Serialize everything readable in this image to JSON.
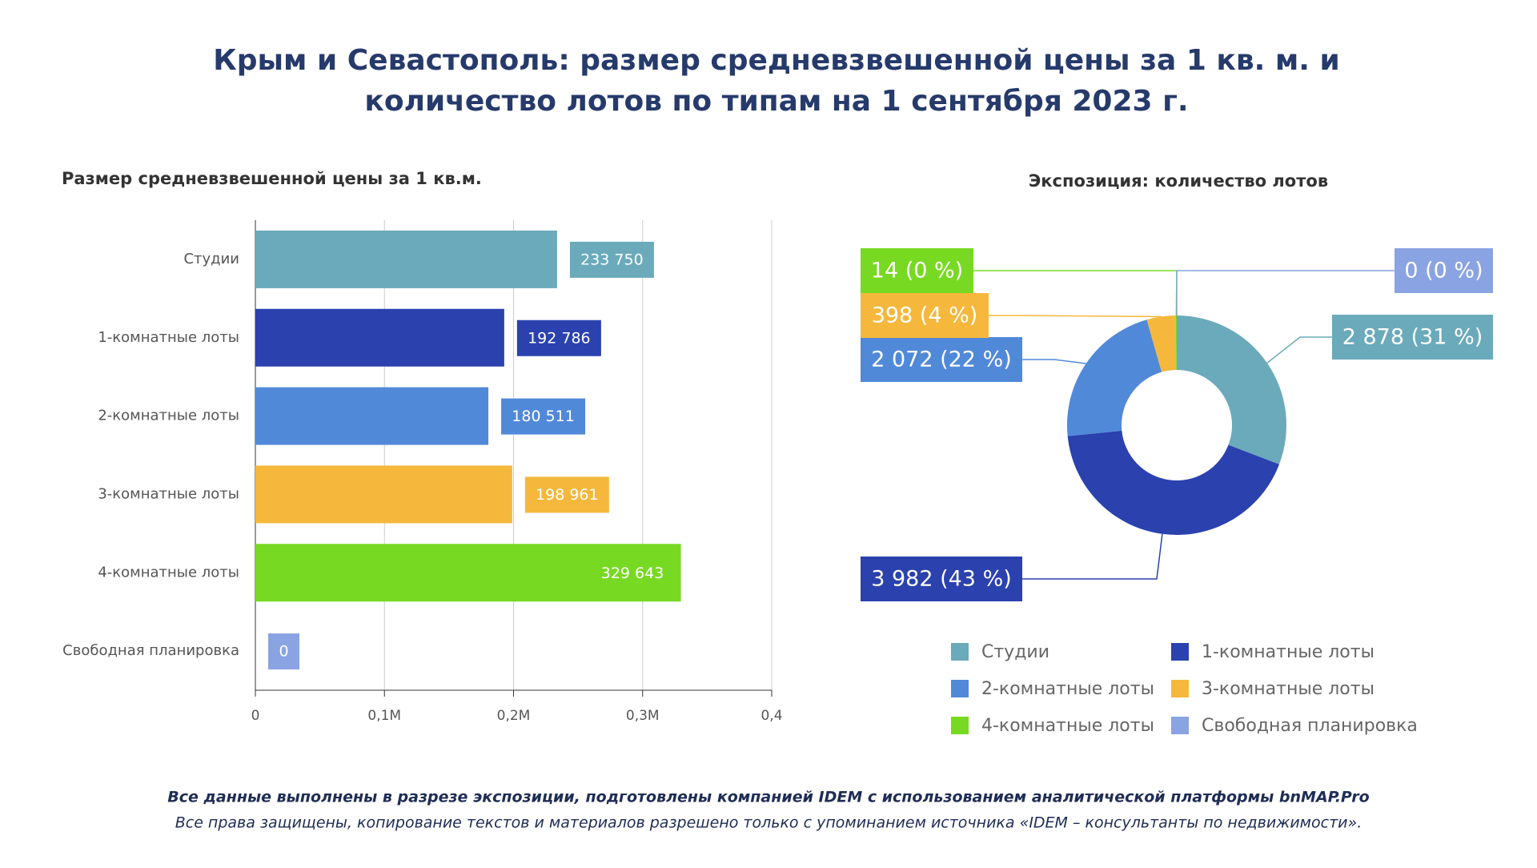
{
  "title": [
    "Крым и Севастополь: размер средневзвешенной цены за 1 кв. м. и",
    "количество лотов по типам на 1 сентября 2023 г."
  ],
  "footer": [
    "Все данные выполнены в разрезе экспозиции, подготовлены компанией IDEM с использованием аналитической платформы bnMAP.Pro",
    "Все права защищены, копирование текстов и материалов разрешено только с упоминанием источника «IDEM – консультанты по недвижимости»."
  ],
  "chart_data": [
    {
      "type": "bar",
      "title": "Размер средневзвешенной цены за 1 кв.м.",
      "categories": [
        "Студии",
        "1-комнатные лоты",
        "2-комнатные лоты",
        "3-комнатные лоты",
        "4-комнатные лоты",
        "Свободная планировка"
      ],
      "values": [
        233750,
        192786,
        180511,
        198961,
        329643,
        0
      ],
      "value_labels": [
        "233 750",
        "192 786",
        "180 511",
        "198 961",
        "329 643",
        "0"
      ],
      "colors": [
        "#6aaabb",
        "#2a41ae",
        "#5189d9",
        "#f5b83c",
        "#78d923",
        "#8aa3e3"
      ],
      "xlim": [
        0,
        400000
      ],
      "xticks": [
        0,
        {
          "value": 100000,
          "label": "0,1M"
        },
        {
          "value": 200000,
          "label": "0,2M"
        },
        {
          "value": 300000,
          "label": "0,3M"
        },
        {
          "value": 400000,
          "label": "0,4"
        }
      ],
      "grid": true
    },
    {
      "type": "donut",
      "title": "Экспозиция: количество лотов",
      "categories": [
        "Студии",
        "1-комнатные лоты",
        "2-комнатные лоты",
        "3-комнатные лоты",
        "4-комнатные лоты",
        "Свободная планировка"
      ],
      "values": [
        2878,
        3982,
        2072,
        398,
        14,
        0
      ],
      "value_labels": [
        "2 878 (31 %)",
        "3 982 (43 %)",
        "2 072 (22 %)",
        "398 (4 %)",
        "14 (0 %)",
        "0 (0 %)"
      ],
      "colors": [
        "#6aaabb",
        "#2a41ae",
        "#5189d9",
        "#f5b83c",
        "#78d923",
        "#8aa3e3"
      ],
      "legend": true
    }
  ]
}
